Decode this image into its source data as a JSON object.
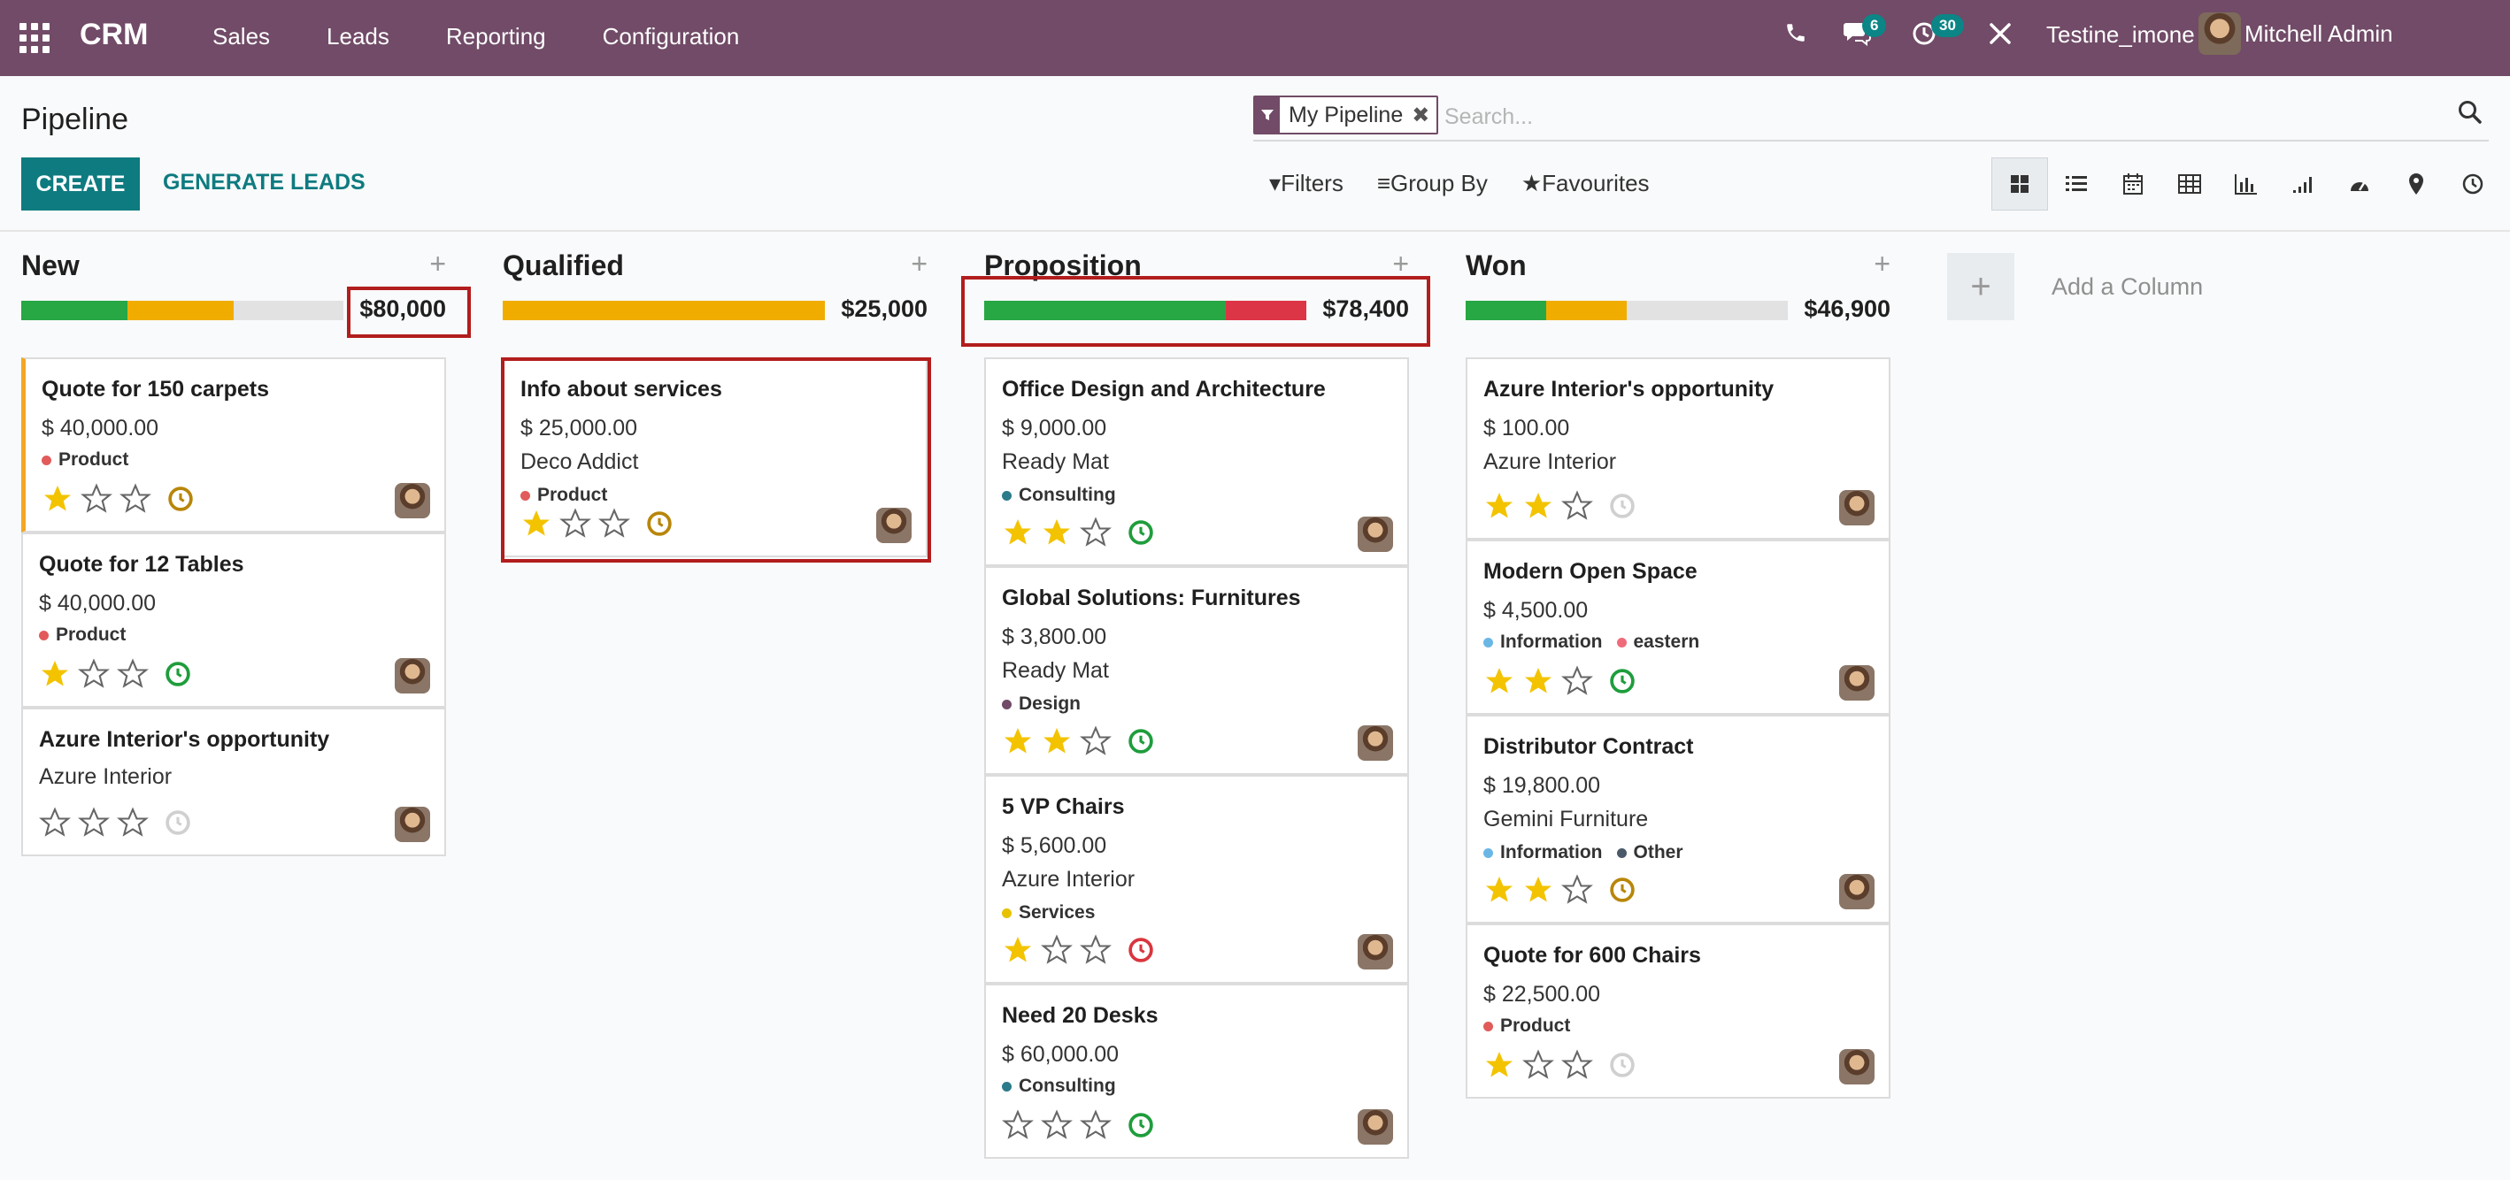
{
  "navbar": {
    "brand": "CRM",
    "menu": [
      "Sales",
      "Leads",
      "Reporting",
      "Configuration"
    ],
    "messages_badge": "6",
    "activities_badge": "30",
    "company": "Testine_imone",
    "user": "Mitchell Admin"
  },
  "control": {
    "title": "Pipeline",
    "facet": "My Pipeline",
    "search_placeholder": "Search...",
    "create": "CREATE",
    "generate": "GENERATE LEADS",
    "filters": "Filters",
    "group_by": "Group By",
    "favourites": "Favourites"
  },
  "columns": [
    {
      "title": "New",
      "total": "$80,000",
      "progress": [
        {
          "color": "#28a745",
          "fraction": 0.33
        },
        {
          "color": "#f0ad00",
          "fraction": 0.33
        }
      ],
      "cards": [
        {
          "title": "Quote for 150 carpets",
          "amount": "$ 40,000.00",
          "partner": "",
          "tags": [
            {
              "label": "Product",
              "color": "#e15b5b"
            }
          ],
          "stars": 1,
          "clock": "orange"
        },
        {
          "title": "Quote for 12 Tables",
          "amount": "$ 40,000.00",
          "partner": "",
          "tags": [
            {
              "label": "Product",
              "color": "#e15b5b"
            }
          ],
          "stars": 1,
          "clock": "green"
        },
        {
          "title": "Azure Interior's opportunity",
          "amount": "",
          "partner": "Azure Interior",
          "tags": [],
          "stars": 0,
          "clock": "grey"
        }
      ]
    },
    {
      "title": "Qualified",
      "total": "$25,000",
      "progress": [
        {
          "color": "#f0ad00",
          "fraction": 1.0
        }
      ],
      "cards": [
        {
          "title": "Info about services",
          "amount": "$ 25,000.00",
          "partner": "Deco Addict",
          "tags": [
            {
              "label": "Product",
              "color": "#e15b5b"
            }
          ],
          "stars": 1,
          "clock": "orange"
        }
      ]
    },
    {
      "title": "Proposition",
      "total": "$78,400",
      "progress": [
        {
          "color": "#28a745",
          "fraction": 0.75
        },
        {
          "color": "#dc3545",
          "fraction": 0.25
        }
      ],
      "cards": [
        {
          "title": "Office Design and Architecture",
          "amount": "$ 9,000.00",
          "partner": "Ready Mat",
          "tags": [
            {
              "label": "Consulting",
              "color": "#2b7b8b"
            }
          ],
          "stars": 2,
          "clock": "green"
        },
        {
          "title": "Global Solutions: Furnitures",
          "amount": "$ 3,800.00",
          "partner": "Ready Mat",
          "tags": [
            {
              "label": "Design",
              "color": "#714b67"
            }
          ],
          "stars": 2,
          "clock": "green"
        },
        {
          "title": "5 VP Chairs",
          "amount": "$ 5,600.00",
          "partner": "Azure Interior",
          "tags": [
            {
              "label": "Services",
              "color": "#e6c200"
            }
          ],
          "stars": 1,
          "clock": "red"
        },
        {
          "title": "Need 20 Desks",
          "amount": "$ 60,000.00",
          "partner": "",
          "tags": [
            {
              "label": "Consulting",
              "color": "#2b7b8b"
            }
          ],
          "stars": 0,
          "clock": "green"
        }
      ]
    },
    {
      "title": "Won",
      "total": "$46,900",
      "progress": [
        {
          "color": "#28a745",
          "fraction": 0.25
        },
        {
          "color": "#f0ad00",
          "fraction": 0.25
        }
      ],
      "cards": [
        {
          "title": "Azure Interior's opportunity",
          "amount": "$ 100.00",
          "partner": "Azure Interior",
          "tags": [],
          "stars": 2,
          "clock": "grey"
        },
        {
          "title": "Modern Open Space",
          "amount": "$ 4,500.00",
          "partner": "",
          "tags": [
            {
              "label": "Information",
              "color": "#6ab7e6"
            },
            {
              "label": "eastern",
              "color": "#ef6b7b"
            }
          ],
          "stars": 2,
          "clock": "green"
        },
        {
          "title": "Distributor Contract",
          "amount": "$ 19,800.00",
          "partner": "Gemini Furniture",
          "tags": [
            {
              "label": "Information",
              "color": "#6ab7e6"
            },
            {
              "label": "Other",
              "color": "#4a5a6a"
            }
          ],
          "stars": 2,
          "clock": "orange"
        },
        {
          "title": "Quote for 600 Chairs",
          "amount": "$ 22,500.00",
          "partner": "",
          "tags": [
            {
              "label": "Product",
              "color": "#e15b5b"
            }
          ],
          "stars": 1,
          "clock": "grey"
        }
      ]
    }
  ],
  "add_column": "Add a Column",
  "colors": {
    "brand": "#714b67",
    "primary": "#0e7b80",
    "highlight": "#b21d1d"
  }
}
